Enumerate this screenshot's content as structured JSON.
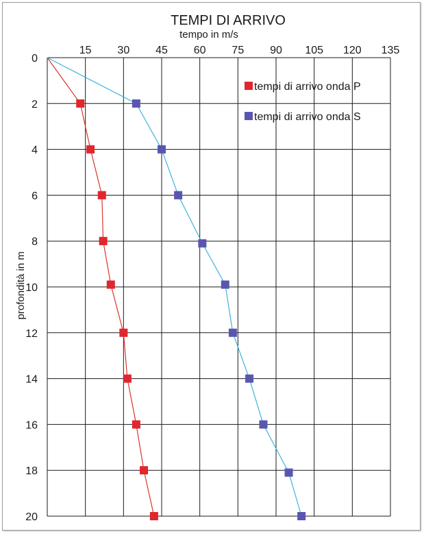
{
  "chart_data": {
    "type": "scatter",
    "title": "TEMPI DI ARRIVO",
    "xlabel": "tempo in m/s",
    "ylabel": "profondità in m",
    "xlim": [
      0,
      135
    ],
    "ylim": [
      0,
      20
    ],
    "y_inverted": true,
    "x_axis_position": "top",
    "x_ticks": [
      "15",
      "30",
      "45",
      "60",
      "75",
      "90",
      "105",
      "120",
      "135"
    ],
    "y_ticks": [
      "0",
      "2",
      "4",
      "6",
      "8",
      "10",
      "12",
      "14",
      "16",
      "18",
      "20"
    ],
    "grid": true,
    "legend_position": "top-right",
    "series": [
      {
        "name": "tempi di arrivo onda P",
        "color": "#e0262e",
        "line_color": "#d8342c",
        "origin": {
          "x": 0,
          "y": 0
        },
        "points": [
          {
            "x": 13,
            "y": 2
          },
          {
            "x": 17,
            "y": 4
          },
          {
            "x": 21.5,
            "y": 6
          },
          {
            "x": 22,
            "y": 8
          },
          {
            "x": 25,
            "y": 9.9
          },
          {
            "x": 30,
            "y": 12
          },
          {
            "x": 31.5,
            "y": 14
          },
          {
            "x": 35,
            "y": 16
          },
          {
            "x": 38,
            "y": 18
          },
          {
            "x": 42,
            "y": 20
          }
        ]
      },
      {
        "name": "tempi di arrivo onda S",
        "color": "#5a56b0",
        "line_color": "#3cb4dc",
        "origin": {
          "x": 0,
          "y": 0
        },
        "points": [
          {
            "x": 35,
            "y": 2
          },
          {
            "x": 45,
            "y": 4
          },
          {
            "x": 51.5,
            "y": 6
          },
          {
            "x": 61,
            "y": 8.1
          },
          {
            "x": 70,
            "y": 9.9
          },
          {
            "x": 73,
            "y": 12
          },
          {
            "x": 79.5,
            "y": 14
          },
          {
            "x": 85,
            "y": 16
          },
          {
            "x": 95,
            "y": 18.1
          },
          {
            "x": 100,
            "y": 20
          }
        ]
      }
    ]
  }
}
